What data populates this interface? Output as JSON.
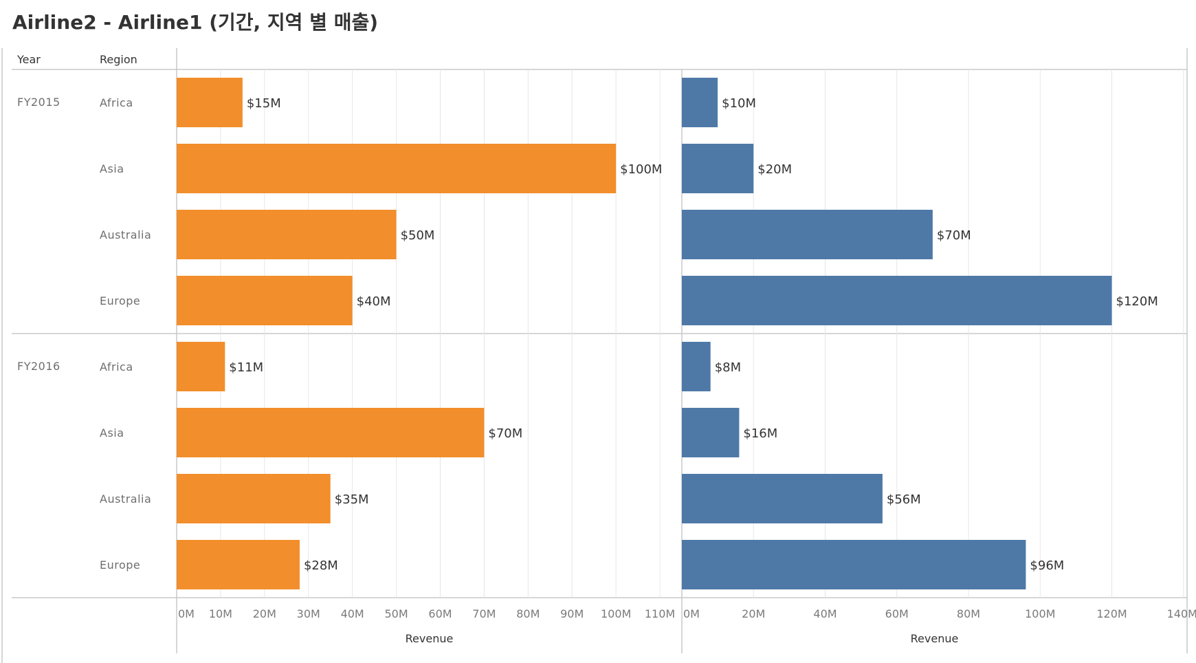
{
  "title": "Airline2 - Airline1 (기간, 지역 별 매출)",
  "headers": {
    "year": "Year",
    "region": "Region"
  },
  "colors": {
    "airline2": "#F28E2B",
    "airline1": "#4E79A7",
    "grid": "#e6e6e6",
    "rule": "#c8c8c8"
  },
  "chart_data": [
    {
      "type": "bar",
      "orientation": "horizontal",
      "groups": [
        "FY2015",
        "FY2016"
      ],
      "categories": [
        "Africa",
        "Asia",
        "Australia",
        "Europe"
      ],
      "values": [
        [
          15,
          100,
          50,
          40
        ],
        [
          11,
          70,
          35,
          28
        ]
      ],
      "value_labels": [
        [
          "$15M",
          "$100M",
          "$50M",
          "$40M"
        ],
        [
          "$11M",
          "$70M",
          "$35M",
          "$28M"
        ]
      ],
      "xlabel": "Revenue",
      "xlim": [
        0,
        115
      ],
      "xticks": [
        0,
        10,
        20,
        30,
        40,
        50,
        60,
        70,
        80,
        90,
        100,
        110
      ],
      "xtick_labels": [
        "0M",
        "10M",
        "20M",
        "30M",
        "40M",
        "50M",
        "60M",
        "70M",
        "80M",
        "90M",
        "100M",
        "110M"
      ],
      "color": "#F28E2B",
      "grid": true
    },
    {
      "type": "bar",
      "orientation": "horizontal",
      "groups": [
        "FY2015",
        "FY2016"
      ],
      "categories": [
        "Africa",
        "Asia",
        "Australia",
        "Europe"
      ],
      "values": [
        [
          10,
          20,
          70,
          120
        ],
        [
          8,
          16,
          56,
          96
        ]
      ],
      "value_labels": [
        [
          "$10M",
          "$20M",
          "$70M",
          "$120M"
        ],
        [
          "$8M",
          "$16M",
          "$56M",
          "$96M"
        ]
      ],
      "xlabel": "Revenue",
      "xlim": [
        0,
        141
      ],
      "xticks": [
        0,
        20,
        40,
        60,
        80,
        100,
        120,
        140
      ],
      "xtick_labels": [
        "0M",
        "20M",
        "40M",
        "60M",
        "80M",
        "100M",
        "120M",
        "140M"
      ],
      "color": "#4E79A7",
      "grid": true
    }
  ]
}
